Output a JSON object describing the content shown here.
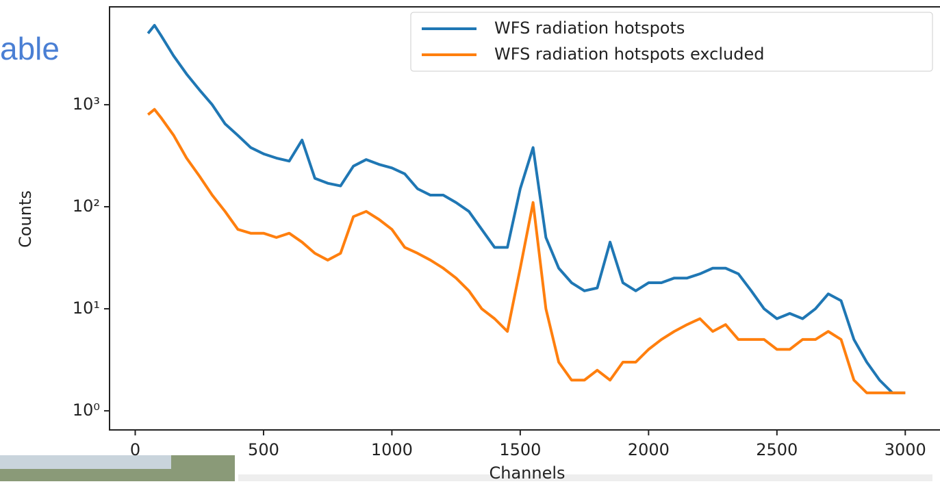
{
  "slide": {
    "title_fragment": "able"
  },
  "chart_data": {
    "type": "line",
    "xlabel": "Channels",
    "ylabel": "Counts",
    "yscale": "log",
    "xlim": [
      -100,
      3130
    ],
    "ylim": [
      0.65,
      9100
    ],
    "xticks": [
      0,
      500,
      1000,
      1500,
      2000,
      2500,
      3000
    ],
    "yticks": [
      {
        "value": 1,
        "label": "10⁰"
      },
      {
        "value": 10,
        "label": "10¹"
      },
      {
        "value": 100,
        "label": "10²"
      },
      {
        "value": 1000,
        "label": "10³"
      }
    ],
    "legend": "upper right",
    "x": [
      50,
      75,
      100,
      150,
      200,
      250,
      300,
      350,
      400,
      450,
      500,
      550,
      600,
      650,
      700,
      750,
      800,
      850,
      900,
      950,
      1000,
      1050,
      1100,
      1150,
      1200,
      1250,
      1300,
      1350,
      1400,
      1450,
      1500,
      1550,
      1600,
      1650,
      1700,
      1750,
      1800,
      1850,
      1900,
      1950,
      2000,
      2050,
      2100,
      2150,
      2200,
      2250,
      2300,
      2350,
      2400,
      2450,
      2500,
      2550,
      2600,
      2650,
      2700,
      2750,
      2800,
      2850,
      2900,
      2950,
      3000
    ],
    "series": [
      {
        "name": "WFS radiation hotspots",
        "color": "#1f77b4",
        "values": [
          5000,
          6000,
          4800,
          3000,
          2000,
          1400,
          1000,
          650,
          500,
          380,
          330,
          300,
          280,
          450,
          190,
          170,
          160,
          250,
          290,
          260,
          240,
          210,
          150,
          130,
          130,
          110,
          90,
          60,
          40,
          40,
          150,
          380,
          50,
          25,
          18,
          15,
          16,
          45,
          18,
          15,
          18,
          18,
          20,
          20,
          22,
          25,
          25,
          22,
          15,
          10,
          8,
          9,
          8,
          10,
          14,
          12,
          5,
          3,
          2,
          1.5,
          1.5
        ]
      },
      {
        "name": "WFS radiation hotspots excluded",
        "color": "#ff7f0e",
        "values": [
          800,
          900,
          750,
          500,
          300,
          200,
          130,
          90,
          60,
          55,
          55,
          50,
          55,
          45,
          35,
          30,
          35,
          80,
          90,
          75,
          60,
          40,
          35,
          30,
          25,
          20,
          15,
          10,
          8,
          6,
          25,
          110,
          10,
          3,
          2,
          2,
          2.5,
          2,
          3,
          3,
          4,
          5,
          6,
          7,
          8,
          6,
          7,
          5,
          5,
          5,
          4,
          4,
          5,
          5,
          6,
          5,
          2,
          1.5,
          1.5,
          1.5,
          1.5
        ]
      }
    ]
  }
}
